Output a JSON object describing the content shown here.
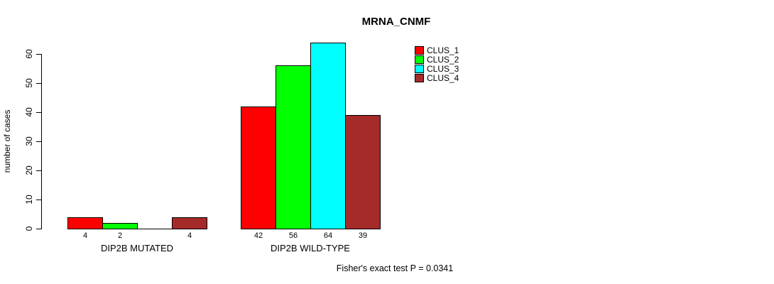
{
  "title": "MRNA_CNMF",
  "ylabel": "number of cases",
  "footer": "Fisher's exact test P = 0.0341",
  "chart_data": {
    "type": "bar",
    "title": "MRNA_CNMF",
    "xlabel": "",
    "ylabel": "number of cases",
    "ylim": [
      0,
      60
    ],
    "yticks": [
      0,
      10,
      20,
      30,
      40,
      50,
      60
    ],
    "grid": false,
    "legend_position": "top-right",
    "groups": [
      "DIP2B MUTATED",
      "DIP2B WILD-TYPE"
    ],
    "series": [
      {
        "name": "CLUS_1",
        "color": "#ff0000",
        "values": [
          4,
          42
        ]
      },
      {
        "name": "CLUS_2",
        "color": "#00ff00",
        "values": [
          2,
          56
        ]
      },
      {
        "name": "CLUS_3",
        "color": "#00ffff",
        "values": [
          0,
          64
        ]
      },
      {
        "name": "CLUS_4",
        "color": "#a52a2a",
        "values": [
          4,
          39
        ]
      }
    ],
    "bar_labels": [
      [
        "4",
        "2",
        "",
        "4"
      ],
      [
        "42",
        "56",
        "64",
        "39"
      ]
    ],
    "annotation": "Fisher's exact test P = 0.0341"
  }
}
